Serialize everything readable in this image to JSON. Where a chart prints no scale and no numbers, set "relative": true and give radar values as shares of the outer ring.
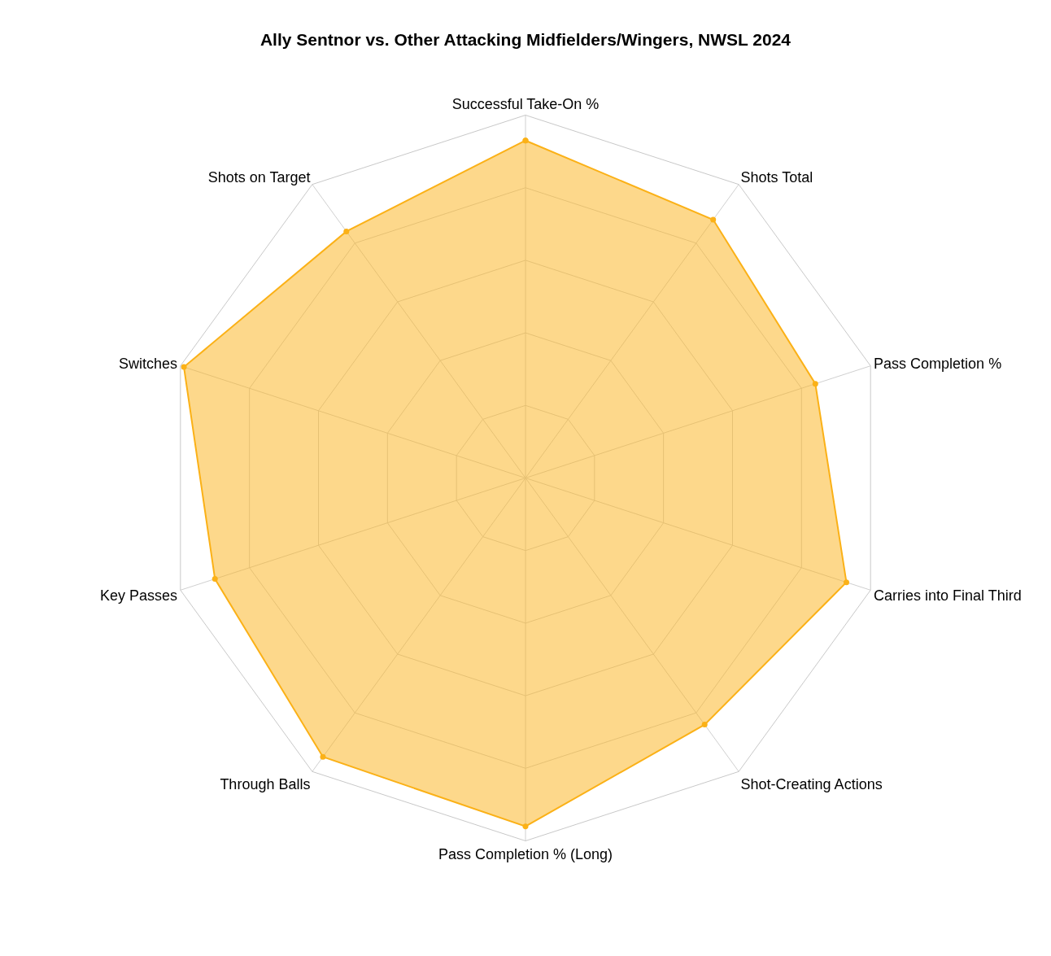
{
  "chart_data": {
    "type": "radar",
    "title": "Ally Sentnor vs. Other Attacking Midfielders/Wingers, NWSL 2024",
    "categories": [
      "Successful Take-On %",
      "Shots Total",
      "Pass Completion %",
      "Carries into Final Third",
      "Shot-Creating Actions",
      "Pass Completion % (Long)",
      "Through Balls",
      "Key Passes",
      "Switches",
      "Shots on Target"
    ],
    "relative": true,
    "grid": true,
    "marker": "circle",
    "line_style": "solid",
    "series": [
      {
        "color": "#fbb117",
        "values": [
          0.93,
          0.88,
          0.84,
          0.93,
          0.84,
          0.96,
          0.95,
          0.9,
          0.99,
          0.84
        ]
      }
    ]
  }
}
